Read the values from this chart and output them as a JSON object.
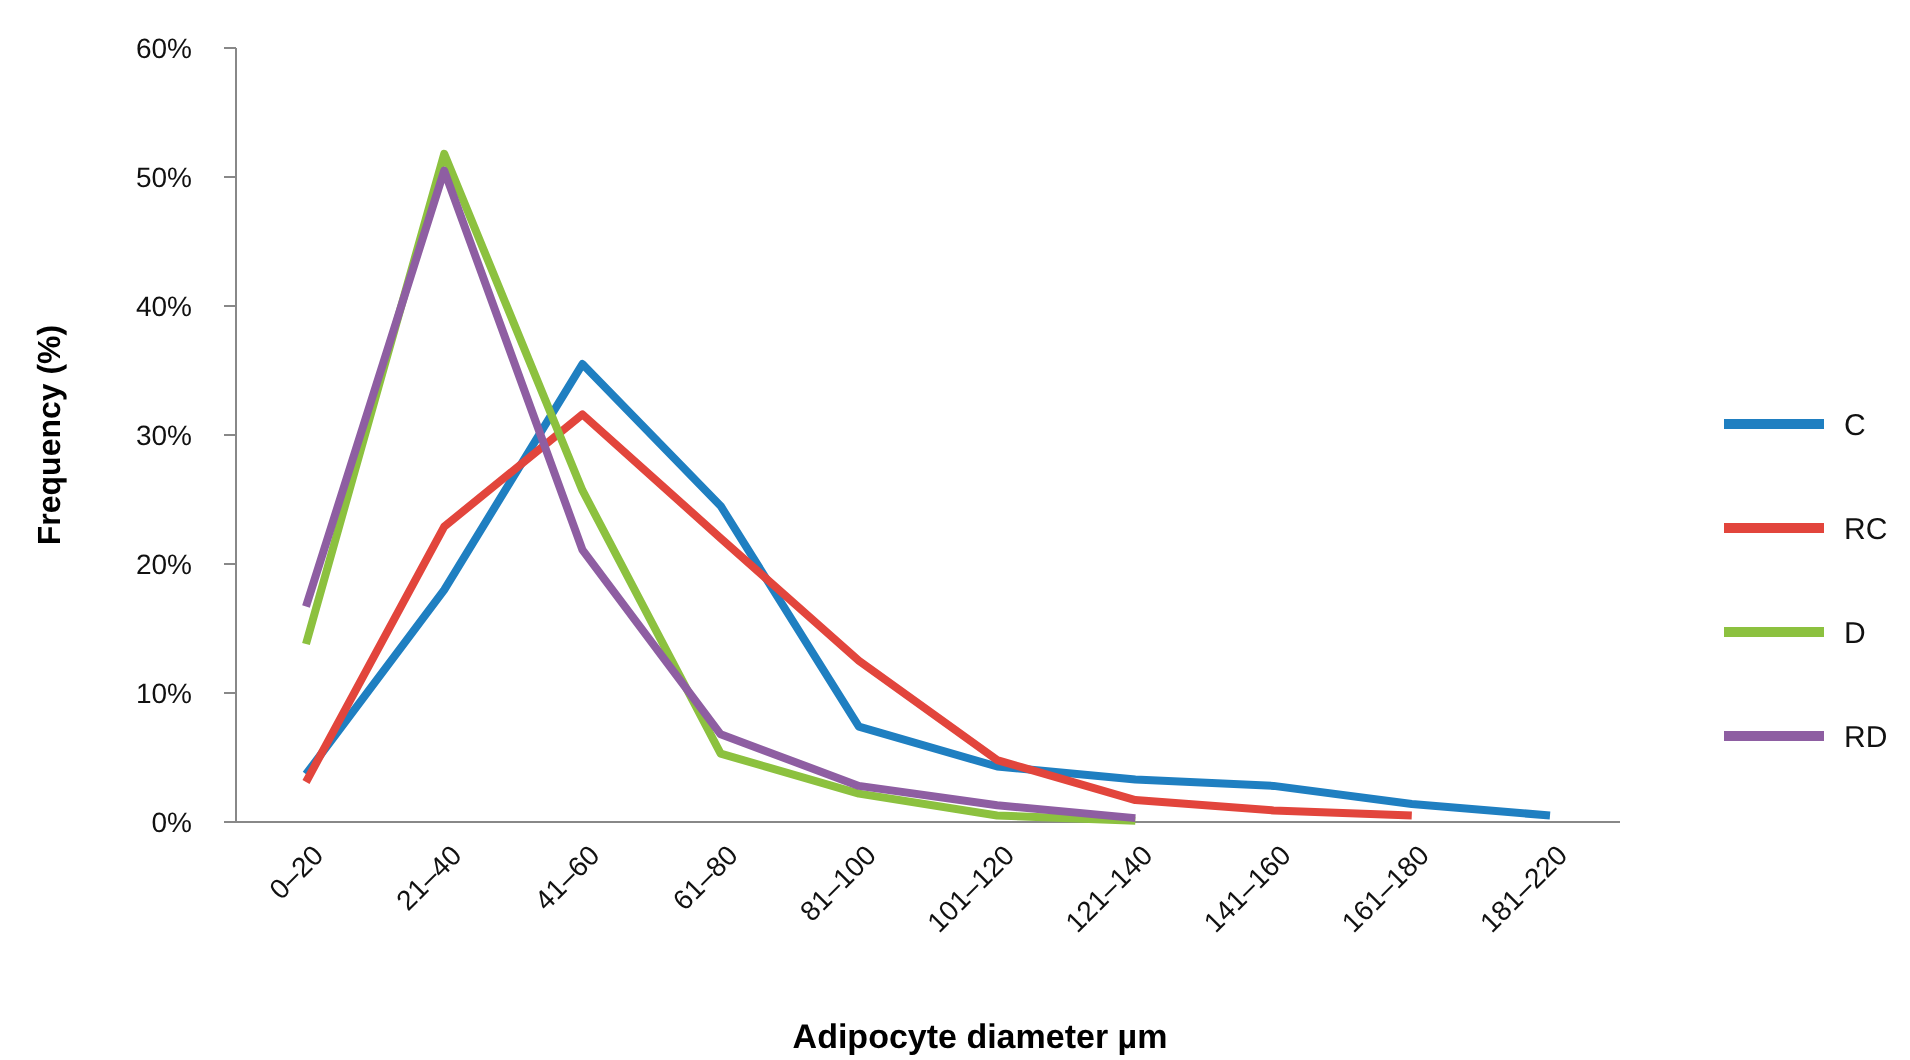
{
  "chart_data": {
    "type": "line",
    "xlabel": "Adipocyte diameter µm",
    "ylabel": "Frequency (%)",
    "categories": [
      "0–20",
      "21–40",
      "41–60",
      "61–80",
      "81–100",
      "101–120",
      "121–140",
      "141–160",
      "161–180",
      "181–220"
    ],
    "ylim": [
      0,
      60
    ],
    "yticks": [
      {
        "value": 0,
        "label": "0%"
      },
      {
        "value": 10,
        "label": "10%"
      },
      {
        "value": 20,
        "label": "20%"
      },
      {
        "value": 30,
        "label": "30%"
      },
      {
        "value": 40,
        "label": "40%"
      },
      {
        "value": 50,
        "label": "50%"
      },
      {
        "value": 60,
        "label": "60%"
      }
    ],
    "grid": false,
    "legend": "right",
    "marker": "none",
    "line_style": "solid",
    "series": [
      {
        "name": "C",
        "color": "#1f7fc1",
        "values": [
          3.7,
          18,
          35.5,
          24.5,
          7.4,
          4.3,
          3.3,
          2.8,
          1.4,
          0.5
        ]
      },
      {
        "name": "RC",
        "color": "#e2453c",
        "values": [
          3.1,
          22.9,
          31.6,
          22,
          12.5,
          4.8,
          1.7,
          0.9,
          0.5,
          null
        ]
      },
      {
        "name": "D",
        "color": "#8cc13f",
        "values": [
          13.8,
          51.8,
          25.7,
          5.3,
          2.2,
          0.5,
          0.1,
          null,
          null,
          null
        ]
      },
      {
        "name": "RD",
        "color": "#8e5ea2",
        "values": [
          16.7,
          50.5,
          21.1,
          6.8,
          2.8,
          1.3,
          0.3,
          null,
          null,
          null
        ]
      }
    ]
  }
}
